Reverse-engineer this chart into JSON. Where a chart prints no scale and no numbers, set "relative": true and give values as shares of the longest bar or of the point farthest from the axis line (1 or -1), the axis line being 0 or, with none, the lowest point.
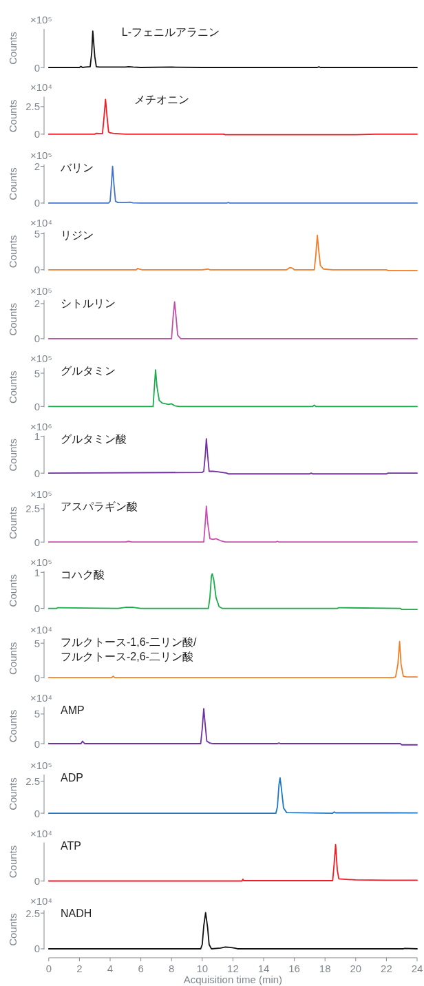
{
  "chart_data": [
    {
      "type": "line",
      "title": "L-フェニルアラニン",
      "ylabel": "Counts",
      "annotations": [
        "×10⁵",
        "0"
      ],
      "relative": true,
      "xlim": [
        0,
        24
      ],
      "tick_labels": "y",
      "series": [
        {
          "color": "#111111",
          "x": [
            0,
            2.0,
            2.1,
            2.2,
            2.4,
            2.7,
            2.8,
            2.87,
            3.0,
            3.1,
            3.3,
            4.0,
            5.0,
            5.2,
            5.5,
            6.0,
            8.0,
            10,
            12,
            14,
            16,
            17.5,
            17.6,
            17.7,
            20,
            22,
            24
          ],
          "values": [
            0,
            0,
            0.03,
            0,
            0.01,
            0.02,
            0.4,
            1,
            0.3,
            0.02,
            0.01,
            0.01,
            0.01,
            0.02,
            0.01,
            0,
            0.01,
            0,
            0,
            0,
            0,
            0,
            0.02,
            0,
            0,
            0,
            0
          ]
        }
      ]
    },
    {
      "type": "line",
      "title": "メチオニン",
      "ylabel": "Counts",
      "annotations": [
        "×10⁴"
      ],
      "ylim": [
        -0.1,
        3.4
      ],
      "yticks": [
        0,
        2.5
      ],
      "xlim": [
        0,
        24
      ],
      "tick_labels": "y",
      "series": [
        {
          "color": "#ee1c25",
          "x": [
            0,
            3.0,
            3.1,
            3.5,
            3.6,
            3.7,
            3.8,
            3.9,
            4.0,
            4.2,
            4.5,
            5.0,
            6.0,
            10,
            11.4,
            11.5,
            14,
            17,
            20,
            21.3,
            24
          ],
          "values": [
            0,
            0,
            0.08,
            0.05,
            1.5,
            3.16,
            1.6,
            0.2,
            0.12,
            0.08,
            0.05,
            0,
            0,
            0,
            0,
            -0.05,
            -0.05,
            -0.05,
            -0.05,
            0,
            0
          ]
        }
      ]
    },
    {
      "type": "line",
      "title": "バリン",
      "ylabel": "Counts",
      "annotations": [
        "×10⁵"
      ],
      "ylim": [
        0,
        2.1
      ],
      "yticks": [
        0,
        2
      ],
      "xlim": [
        0,
        24
      ],
      "tick_labels": "y",
      "series": [
        {
          "color": "#4472c4",
          "x": [
            0,
            3.9,
            4.0,
            4.1,
            4.16,
            4.25,
            4.35,
            4.5,
            5.0,
            5.3,
            5.5,
            6.0,
            11.6,
            11.7,
            11.8,
            24
          ],
          "values": [
            0,
            0,
            0.1,
            1.2,
            2.0,
            1.0,
            0.1,
            0.03,
            0.03,
            0.05,
            0.01,
            0,
            0,
            0.03,
            0,
            0
          ]
        }
      ]
    },
    {
      "type": "line",
      "title": "リジン",
      "ylabel": "Counts",
      "annotations": [
        "×10⁴"
      ],
      "ylim": [
        -0.15,
        5.2
      ],
      "yticks": [
        0,
        5
      ],
      "xlim": [
        0,
        24
      ],
      "tick_labels": "y",
      "series": [
        {
          "color": "#f07f2a",
          "x": [
            0,
            5.7,
            5.8,
            5.9,
            6.1,
            10,
            10.4,
            10.5,
            15.5,
            15.7,
            15.9,
            16.0,
            17.3,
            17.4,
            17.5,
            17.6,
            17.7,
            17.9,
            18.5,
            22,
            22.1,
            24
          ],
          "values": [
            0,
            0,
            0.2,
            0.1,
            0,
            0,
            0.1,
            0,
            0,
            0.3,
            0.2,
            0,
            0,
            2.0,
            4.8,
            2.5,
            0.6,
            0.1,
            0,
            0,
            -0.1,
            -0.1
          ]
        }
      ]
    },
    {
      "type": "line",
      "title": "シトルリン",
      "ylabel": "Counts",
      "annotations": [
        "×10⁵"
      ],
      "ylim": [
        0,
        2.2
      ],
      "yticks": [
        0,
        2
      ],
      "xlim": [
        0,
        24
      ],
      "tick_labels": "y",
      "series": [
        {
          "color": "#c04fa8",
          "x": [
            0,
            8.0,
            8.1,
            8.2,
            8.3,
            8.4,
            8.6,
            12,
            24
          ],
          "values": [
            0,
            0,
            1.2,
            2.1,
            1.2,
            0.2,
            0,
            0,
            0
          ]
        }
      ]
    },
    {
      "type": "line",
      "title": "グルタミン",
      "ylabel": "Counts",
      "annotations": [
        "×10⁵"
      ],
      "ylim": [
        0,
        5.8
      ],
      "yticks": [
        0,
        5
      ],
      "xlim": [
        0,
        24
      ],
      "tick_labels": "y",
      "series": [
        {
          "color": "#1aab4b",
          "x": [
            0,
            6.8,
            6.9,
            6.96,
            7.05,
            7.2,
            7.4,
            7.8,
            8.0,
            8.2,
            8.5,
            12,
            17.2,
            17.3,
            17.4,
            24
          ],
          "values": [
            0,
            0,
            3.5,
            5.5,
            3.0,
            0.9,
            0.5,
            0.3,
            0.4,
            0.1,
            0,
            0,
            0,
            0.2,
            0,
            0
          ]
        }
      ]
    },
    {
      "type": "line",
      "title": "グルタミン酸",
      "ylabel": "Counts",
      "annotations": [
        "×10⁶"
      ],
      "ylim": [
        -0.03,
        1.02
      ],
      "yticks": [
        0,
        1
      ],
      "xlim": [
        0,
        24
      ],
      "tick_labels": "y",
      "series": [
        {
          "color": "#7030a0",
          "x": [
            0,
            10.0,
            10.1,
            10.2,
            10.27,
            10.35,
            10.45,
            10.7,
            11.0,
            11.3,
            11.6,
            11.7,
            17,
            17.1,
            17.2,
            22,
            22.1,
            24
          ],
          "values": [
            0,
            0.02,
            0.05,
            0.5,
            0.94,
            0.5,
            0.05,
            0.05,
            0.04,
            0.02,
            0,
            -0.02,
            -0.02,
            0,
            -0.02,
            -0.02,
            0,
            0
          ]
        }
      ]
    },
    {
      "type": "line",
      "title": "アスパラギン酸",
      "ylabel": "Counts",
      "annotations": [
        "×10⁵"
      ],
      "ylim": [
        0,
        2.9
      ],
      "yticks": [
        0,
        2.5
      ],
      "xlim": [
        0,
        24
      ],
      "tick_labels": "y",
      "series": [
        {
          "color": "#c94fae",
          "x": [
            0,
            5.0,
            5.2,
            5.4,
            10.1,
            10.2,
            10.27,
            10.35,
            10.5,
            10.7,
            10.9,
            11.2,
            11.5,
            14.8,
            14.9,
            15.0,
            24
          ],
          "values": [
            0,
            0,
            0.05,
            0,
            0,
            1.5,
            2.7,
            1.5,
            0.25,
            0.2,
            0.25,
            0.1,
            0,
            0,
            0.05,
            0,
            0
          ]
        }
      ]
    },
    {
      "type": "line",
      "title": "コハク酸",
      "ylabel": "Counts",
      "annotations": [
        "×10⁵"
      ],
      "ylim": [
        -0.04,
        1.03
      ],
      "yticks": [
        0,
        1
      ],
      "xlim": [
        0,
        24
      ],
      "tick_labels": "y",
      "series": [
        {
          "color": "#1aab4b",
          "x": [
            0,
            0.5,
            0.6,
            4.5,
            5.0,
            5.5,
            6.0,
            10.4,
            10.5,
            10.6,
            10.65,
            10.75,
            10.9,
            11.1,
            11.3,
            18.8,
            18.9,
            22.9,
            23.0,
            24
          ],
          "values": [
            0,
            0,
            0.02,
            0,
            0.03,
            0.03,
            0,
            0,
            0.3,
            0.9,
            0.96,
            0.8,
            0.3,
            0.05,
            0,
            0,
            0.02,
            0,
            -0.03,
            -0.03
          ]
        }
      ]
    },
    {
      "type": "line",
      "title": "フルクトース-1,6-二リン酸/\nフルクトース-2,6-二リン酸",
      "ylabel": "Counts",
      "annotations": [
        "×10⁴"
      ],
      "ylim": [
        0,
        5.6
      ],
      "yticks": [
        0,
        5
      ],
      "xlim": [
        0,
        24
      ],
      "tick_labels": "y",
      "series": [
        {
          "color": "#f07f2a",
          "x": [
            0,
            4.1,
            4.2,
            4.3,
            22.4,
            22.6,
            22.75,
            22.86,
            22.95,
            23.1,
            23.3,
            24
          ],
          "values": [
            0,
            0,
            0.2,
            0,
            0,
            0.1,
            2.0,
            5.25,
            2.0,
            0.2,
            0.1,
            0.1
          ]
        }
      ]
    },
    {
      "type": "line",
      "title": "AMP",
      "ylabel": "Counts",
      "annotations": [
        "×10⁴"
      ],
      "ylim": [
        -0.3,
        6.2
      ],
      "yticks": [
        0,
        5
      ],
      "xlim": [
        0,
        24
      ],
      "tick_labels": "y",
      "series": [
        {
          "color": "#7030a0",
          "x": [
            0,
            2.1,
            2.2,
            2.35,
            9.9,
            10.0,
            10.1,
            10.2,
            10.3,
            10.5,
            10.7,
            14.9,
            15.0,
            15.1,
            22.9,
            23.0,
            24
          ],
          "values": [
            0,
            0,
            0.4,
            0,
            0,
            2.5,
            5.9,
            3.0,
            0.4,
            0.1,
            0,
            0,
            0.1,
            0,
            0,
            -0.2,
            -0.2
          ]
        }
      ]
    },
    {
      "type": "line",
      "title": "ADP",
      "ylabel": "Counts",
      "annotations": [
        "×10⁵"
      ],
      "ylim": [
        0,
        3.0
      ],
      "yticks": [
        0,
        2.5
      ],
      "xlim": [
        0,
        24
      ],
      "tick_labels": "y",
      "series": [
        {
          "color": "#1f77c4",
          "x": [
            0,
            14.8,
            14.9,
            15.0,
            15.07,
            15.15,
            15.3,
            15.5,
            18.5,
            18.6,
            18.7,
            19.0,
            22.0,
            24
          ],
          "values": [
            0,
            0,
            0.5,
            2.2,
            2.76,
            2.0,
            0.4,
            0.05,
            0,
            0.1,
            0.03,
            0.03,
            0.03,
            0.02
          ]
        }
      ]
    },
    {
      "type": "line",
      "title": "ATP",
      "ylabel": "Counts",
      "annotations": [
        "×10⁴",
        "0"
      ],
      "relative": true,
      "xlim": [
        0,
        24
      ],
      "tick_labels": "y",
      "series": [
        {
          "color": "#ee1c25",
          "x": [
            0,
            12.6,
            12.65,
            12.7,
            18.5,
            18.6,
            18.69,
            18.8,
            18.9,
            19.2,
            20,
            22,
            24
          ],
          "values": [
            0,
            0,
            0.05,
            0.01,
            0.01,
            0.5,
            1,
            0.3,
            0.06,
            0.05,
            0.03,
            0.02,
            0.02
          ]
        }
      ]
    },
    {
      "type": "line",
      "title": "NADH",
      "ylabel": "Counts",
      "xlabel": "Acquisition time (min)",
      "annotations": [
        "×10⁴"
      ],
      "ylim": [
        0,
        2.7
      ],
      "yticks": [
        0,
        2.5
      ],
      "xlim": [
        0,
        24
      ],
      "xticks": [
        0,
        2,
        4,
        6,
        8,
        10,
        12,
        14,
        16,
        18,
        20,
        22,
        24
      ],
      "series": [
        {
          "color": "#111111",
          "x": [
            0,
            9.9,
            10.0,
            10.1,
            10.22,
            10.35,
            10.45,
            10.6,
            11.2,
            11.5,
            11.8,
            12.1,
            12.3,
            23.1,
            23.2,
            24
          ],
          "values": [
            0,
            0,
            0.3,
            1.6,
            2.53,
            1.5,
            0.3,
            0,
            0.05,
            0.12,
            0.1,
            0.05,
            0,
            0,
            0.03,
            0
          ]
        }
      ]
    }
  ]
}
